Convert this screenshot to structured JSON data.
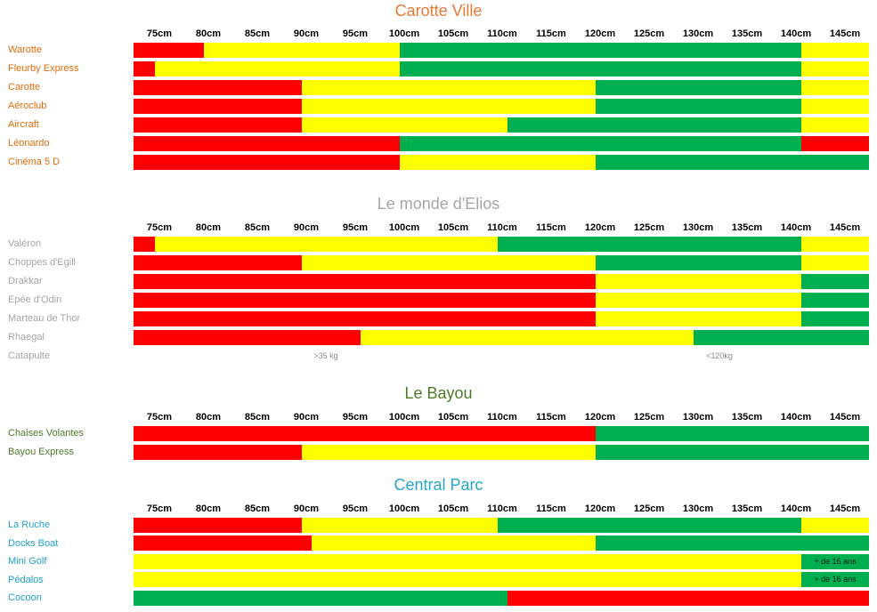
{
  "chart_data": [
    {
      "type": "bar",
      "orientation": "horizontal",
      "stacked": true,
      "title": "Carotte Ville",
      "title_color": "#E97A33",
      "label_color": "#E46C0A",
      "x_ticks": [
        75,
        80,
        85,
        90,
        95,
        100,
        105,
        110,
        115,
        120,
        125,
        130,
        135,
        140,
        145
      ],
      "x_tick_labels": [
        "75cm",
        "80cm",
        "85cm",
        "90cm",
        "95cm",
        "100cm",
        "105cm",
        "110cm",
        "115cm",
        "120cm",
        "125cm",
        "130cm",
        "135cm",
        "140cm",
        "145cm"
      ],
      "rows": [
        {
          "label": "Warotte",
          "breaks": [
            80,
            100,
            141
          ],
          "colors": [
            "#FF0000",
            "#FFFF00",
            "#00B050",
            "#FFFF00"
          ]
        },
        {
          "label": "Fleurby Express",
          "breaks": [
            75,
            100,
            141
          ],
          "colors": [
            "#FF0000",
            "#FFFF00",
            "#00B050",
            "#FFFF00"
          ]
        },
        {
          "label": "Carotte",
          "breaks": [
            90,
            120,
            141
          ],
          "colors": [
            "#FF0000",
            "#FFFF00",
            "#00B050",
            "#FFFF00"
          ]
        },
        {
          "label": "Aéroclub",
          "breaks": [
            90,
            120,
            141
          ],
          "colors": [
            "#FF0000",
            "#FFFF00",
            "#00B050",
            "#FFFF00"
          ]
        },
        {
          "label": "Aircraft",
          "breaks": [
            90,
            111,
            141
          ],
          "colors": [
            "#FF0000",
            "#FFFF00",
            "#00B050",
            "#FFFF00"
          ]
        },
        {
          "label": "Léonardo",
          "breaks": [
            100,
            141
          ],
          "colors": [
            "#FF0000",
            "#00B050",
            "#FF0000"
          ]
        },
        {
          "label": "Cinéma 5 D",
          "breaks": [
            100,
            120
          ],
          "colors": [
            "#FF0000",
            "#FFFF00",
            "#00B050"
          ]
        }
      ]
    },
    {
      "type": "bar",
      "orientation": "horizontal",
      "stacked": true,
      "title": "Le monde d'Elios",
      "title_color": "#A6A6A6",
      "label_color": "#A6A6A6",
      "x_ticks": [
        75,
        80,
        85,
        90,
        95,
        100,
        105,
        110,
        115,
        120,
        125,
        130,
        135,
        140,
        145
      ],
      "x_tick_labels": [
        "75cm",
        "80cm",
        "85cm",
        "90cm",
        "95cm",
        "100cm",
        "105cm",
        "110cm",
        "115cm",
        "120cm",
        "125cm",
        "130cm",
        "135cm",
        "140cm",
        "145cm"
      ],
      "rows": [
        {
          "label": "Valéron",
          "breaks": [
            75,
            110,
            141
          ],
          "colors": [
            "#FF0000",
            "#FFFF00",
            "#00B050",
            "#FFFF00"
          ]
        },
        {
          "label": "Choppes d'Egill",
          "breaks": [
            90,
            120,
            141
          ],
          "colors": [
            "#FF0000",
            "#FFFF00",
            "#00B050",
            "#FFFF00"
          ]
        },
        {
          "label": "Drakkar",
          "breaks": [
            120,
            141
          ],
          "colors": [
            "#FF0000",
            "#FFFF00",
            "#00B050"
          ]
        },
        {
          "label": "Epée d'Odin",
          "breaks": [
            120,
            141
          ],
          "colors": [
            "#FF0000",
            "#FFFF00",
            "#00B050"
          ]
        },
        {
          "label": "Marteau de Thor",
          "breaks": [
            120,
            141
          ],
          "colors": [
            "#FF0000",
            "#FFFF00",
            "#00B050"
          ]
        },
        {
          "label": "Rhaegal",
          "breaks": [
            96,
            130
          ],
          "colors": [
            "#FF0000",
            "#FFFF00",
            "#00B050"
          ]
        },
        {
          "label": "Catapulte",
          "breaks": [],
          "colors": [],
          "notes": [
            ">35 kg",
            "<120kg"
          ]
        }
      ]
    },
    {
      "type": "bar",
      "orientation": "horizontal",
      "stacked": true,
      "title": "Le Bayou",
      "title_color": "#4F7B28",
      "label_color": "#4F7B28",
      "x_ticks": [
        75,
        80,
        85,
        90,
        95,
        100,
        105,
        110,
        115,
        120,
        125,
        130,
        135,
        140,
        145
      ],
      "x_tick_labels": [
        "75cm",
        "80cm",
        "85cm",
        "90cm",
        "95cm",
        "100cm",
        "105cm",
        "110cm",
        "115cm",
        "120cm",
        "125cm",
        "130cm",
        "135cm",
        "140cm",
        "145cm"
      ],
      "rows": [
        {
          "label": "Chaises Volantes",
          "breaks": [
            120
          ],
          "colors": [
            "#FF0000",
            "#00B050"
          ]
        },
        {
          "label": "Bayou Express",
          "breaks": [
            90,
            120
          ],
          "colors": [
            "#FF0000",
            "#FFFF00",
            "#00B050"
          ]
        }
      ]
    },
    {
      "type": "bar",
      "orientation": "horizontal",
      "stacked": true,
      "title": "Central Parc",
      "title_color": "#23A7CF",
      "label_color": "#1FA3CB",
      "x_ticks": [
        75,
        80,
        85,
        90,
        95,
        100,
        105,
        110,
        115,
        120,
        125,
        130,
        135,
        140,
        145
      ],
      "x_tick_labels": [
        "75cm",
        "80cm",
        "85cm",
        "90cm",
        "95cm",
        "100cm",
        "105cm",
        "110cm",
        "115cm",
        "120cm",
        "125cm",
        "130cm",
        "135cm",
        "140cm",
        "145cm"
      ],
      "rows": [
        {
          "label": "La Ruche",
          "breaks": [
            90,
            110,
            141
          ],
          "colors": [
            "#FF0000",
            "#FFFF00",
            "#00B050",
            "#FFFF00"
          ]
        },
        {
          "label": "Docks Boat",
          "breaks": [
            91,
            120
          ],
          "colors": [
            "#FF0000",
            "#FFFF00",
            "#00B050"
          ]
        },
        {
          "label": "Mini Golf",
          "breaks": [
            141
          ],
          "colors": [
            "#FFFF00",
            "#00B050"
          ],
          "segment_text": [
            null,
            "+ de 16 ans"
          ]
        },
        {
          "label": "Pédalos",
          "breaks": [
            141
          ],
          "colors": [
            "#FFFF00",
            "#00B050"
          ],
          "segment_text": [
            null,
            "+ de 16 ans"
          ]
        },
        {
          "label": "Cocoon",
          "breaks": [
            111
          ],
          "colors": [
            "#00B050",
            "#FF0000"
          ]
        }
      ]
    }
  ]
}
